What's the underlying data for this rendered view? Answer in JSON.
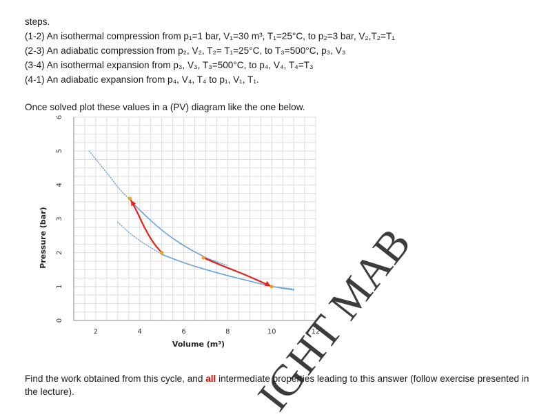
{
  "intro": {
    "heading": "steps.",
    "step_1_2": "(1-2) An isothermal compression from p₁=1 bar, V₁=30 m³, T₁=25°C, to p₂=3 bar, V₂,T₂=T₁",
    "step_2_3": "(2-3) An adiabatic compression from p₂, V₂, T₂= T₁=25°C, to T₃=500°C, p₃, V₃",
    "step_3_4": "(3-4) An isothermal expansion from p₃, V₃, T₃=500°C, to p₄, V₄, T₄=T₃",
    "step_4_1": "(4-1) An adiabatic expansion from p₄, V₄, T₄ to p₁, V₁, T₁.",
    "plot_instruction": "Once solved plot these values in a (PV) diagram like the one below."
  },
  "footer": {
    "before": "Find the work obtained from this cycle, and ",
    "emph": "all",
    "after": " intermediate properties leading to this answer (follow exercise presented in the lecture)."
  },
  "watermark": {
    "text": "IGHT MAB"
  },
  "chart_data": {
    "type": "line",
    "xlabel": "Volume (m³)",
    "ylabel": "Pressure (bar)",
    "xlim": [
      1,
      12
    ],
    "ylim": [
      0,
      6
    ],
    "xticks": [
      "2",
      "4",
      "6",
      "8",
      "10",
      "12"
    ],
    "yticks": [
      "0",
      "1",
      "2",
      "3",
      "4",
      "5",
      "6"
    ],
    "grid": true,
    "colors": {
      "isotherm": "#6aa0d8",
      "process": "#e8201c",
      "marker": "#f0a020",
      "grid": "#dcdcdc",
      "axis": "#888888"
    },
    "series": [
      {
        "id": "isotherm-upper",
        "style": "blue",
        "points": [
          [
            3.5,
            3.6
          ],
          [
            4,
            3.25
          ],
          [
            5,
            2.65
          ],
          [
            6,
            2.2
          ],
          [
            7,
            1.85
          ],
          [
            8,
            1.55
          ],
          [
            9,
            1.3
          ],
          [
            10,
            1.0
          ]
        ]
      },
      {
        "id": "isotherm-lower",
        "style": "blue",
        "points": [
          [
            5,
            1.95
          ],
          [
            6,
            1.7
          ],
          [
            7,
            1.5
          ],
          [
            8,
            1.32
          ],
          [
            9,
            1.16
          ],
          [
            10,
            1.0
          ],
          [
            11,
            0.9
          ]
        ]
      },
      {
        "id": "isotherm-upper-dotted",
        "style": "dotted",
        "points": [
          [
            1.7,
            5.0
          ],
          [
            2.2,
            4.6
          ],
          [
            2.7,
            4.2
          ],
          [
            3.1,
            3.85
          ],
          [
            3.5,
            3.6
          ]
        ]
      },
      {
        "id": "isotherm-lower-dotted",
        "style": "dotted",
        "points": [
          [
            3.0,
            2.9
          ],
          [
            3.5,
            2.6
          ],
          [
            4.0,
            2.35
          ],
          [
            4.5,
            2.15
          ],
          [
            5.0,
            1.95
          ]
        ]
      },
      {
        "id": "tail-dotted-1",
        "style": "dotted",
        "points": [
          [
            7,
            1.85
          ],
          [
            8,
            1.62
          ]
        ]
      },
      {
        "id": "tail-dotted-2",
        "style": "dotted",
        "points": [
          [
            10,
            1.0
          ],
          [
            11.0,
            0.93
          ]
        ]
      },
      {
        "id": "adiabat-2-3",
        "style": "red",
        "points": [
          [
            5,
            2.0
          ],
          [
            4.6,
            2.3
          ],
          [
            4.2,
            2.75
          ],
          [
            3.85,
            3.25
          ],
          [
            3.55,
            3.6
          ]
        ]
      },
      {
        "id": "adiabat-4-1",
        "style": "red",
        "points": [
          [
            6.9,
            1.85
          ],
          [
            7.8,
            1.6
          ],
          [
            8.8,
            1.35
          ],
          [
            10,
            1.0
          ]
        ]
      }
    ],
    "markers": [
      [
        3.55,
        3.6
      ],
      [
        5,
        2.0
      ],
      [
        6.9,
        1.85
      ],
      [
        10,
        1.0
      ]
    ]
  }
}
